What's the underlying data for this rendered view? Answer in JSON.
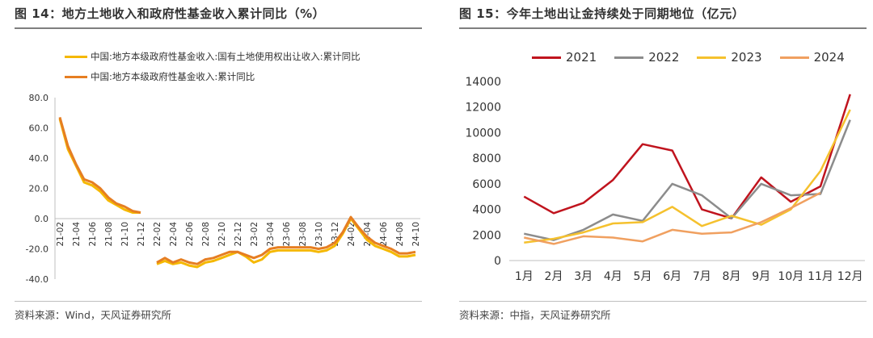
{
  "left": {
    "title": "图 14：地方土地收入和政府性基金收入累计同比（%）",
    "source": "资料来源：Wind，天风证券研究所",
    "chart_data": {
      "type": "line",
      "ylim": [
        -40,
        80
      ],
      "yticks": [
        "80.0",
        "60.0",
        "40.0",
        "20.0",
        "0.0",
        "-20.0",
        "-40.0"
      ],
      "categories": [
        "21-02",
        "21-03",
        "21-04",
        "21-05",
        "21-06",
        "21-07",
        "21-08",
        "21-09",
        "21-10",
        "21-11",
        "21-12",
        "22-01",
        "22-02",
        "22-03",
        "22-04",
        "22-05",
        "22-06",
        "22-07",
        "22-08",
        "22-09",
        "22-10",
        "22-11",
        "22-12",
        "23-01",
        "23-02",
        "23-03",
        "23-04",
        "23-05",
        "23-06",
        "23-07",
        "23-08",
        "23-09",
        "23-10",
        "23-11",
        "23-12",
        "24-01",
        "24-02",
        "24-03",
        "24-04",
        "24-05",
        "24-06",
        "24-07",
        "24-08",
        "24-09",
        "24-10"
      ],
      "xtick_labels": [
        "21-02",
        "21-04",
        "21-06",
        "21-08",
        "21-10",
        "21-12",
        "22-02",
        "22-04",
        "22-06",
        "22-08",
        "22-10",
        "22-12",
        "23-02",
        "23-04",
        "23-06",
        "23-08",
        "23-10",
        "23-12",
        "24-02",
        "24-04",
        "24-06",
        "24-08",
        "24-10"
      ],
      "series": [
        {
          "name": "中国:地方本级政府性基金收入:国有土地使用权出让收入:累计同比",
          "color": "#F5B800",
          "values": [
            66,
            46,
            35,
            24,
            22,
            18,
            12,
            9,
            6,
            4,
            4,
            null,
            -30,
            -28,
            -30,
            -29,
            -31,
            -32,
            -29,
            -28,
            -26,
            -24,
            -22,
            -25,
            -29,
            -27,
            -22,
            -21,
            -21,
            -21,
            -21,
            -21,
            -22,
            -21,
            -18,
            -10,
            0,
            -7,
            -14,
            -18,
            -20,
            -22,
            -25,
            -25,
            -24
          ]
        },
        {
          "name": "中国:地方本级政府性基金收入:累计同比",
          "color": "#E67E22",
          "values": [
            67,
            48,
            36,
            26,
            24,
            20,
            14,
            10,
            8,
            5,
            4,
            null,
            -29,
            -26,
            -29,
            -27,
            -29,
            -30,
            -27,
            -26,
            -24,
            -22,
            -22,
            -24,
            -26,
            -24,
            -20,
            -19,
            -19,
            -19,
            -19,
            -19,
            -20,
            -19,
            -16,
            -9,
            1,
            -6,
            -12,
            -16,
            -18,
            -20,
            -23,
            -23,
            -22
          ]
        }
      ]
    }
  },
  "right": {
    "title": "图 15：今年土地出让金持续处于同期地位（亿元）",
    "source": "资料来源：中指，天风证券研究所",
    "chart_data": {
      "type": "line",
      "ylim": [
        0,
        14000
      ],
      "yticks": [
        "14000",
        "12000",
        "10000",
        "8000",
        "6000",
        "4000",
        "2000",
        "0"
      ],
      "categories": [
        "1月",
        "2月",
        "3月",
        "4月",
        "5月",
        "6月",
        "7月",
        "8月",
        "9月",
        "10月",
        "11月",
        "12月"
      ],
      "series": [
        {
          "name": "2021",
          "color": "#C0141E",
          "values": [
            5000,
            3700,
            4500,
            6300,
            9100,
            8600,
            4000,
            3300,
            6500,
            4600,
            5800,
            13000
          ]
        },
        {
          "name": "2022",
          "color": "#8C8C8C",
          "values": [
            2100,
            1600,
            2400,
            3600,
            3100,
            6000,
            5100,
            3300,
            6000,
            5100,
            5200,
            11000
          ]
        },
        {
          "name": "2023",
          "color": "#F5C12E",
          "values": [
            1400,
            1700,
            2200,
            2900,
            3000,
            4200,
            2700,
            3500,
            2800,
            4000,
            7000,
            11800
          ]
        },
        {
          "name": "2024",
          "color": "#F0A060",
          "values": [
            1800,
            1300,
            1900,
            1800,
            1500,
            2400,
            2100,
            2200,
            3000,
            4100,
            5300,
            null
          ]
        }
      ]
    }
  }
}
